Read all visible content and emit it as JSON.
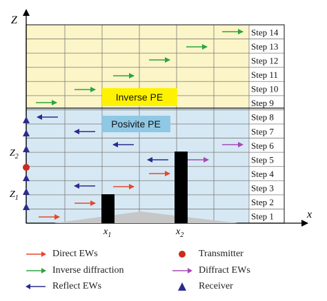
{
  "axes": {
    "z_label": "Z",
    "x_label": "x",
    "z_ticks": [
      "Z",
      "Z"
    ],
    "z_tick_subs": [
      "2",
      "1"
    ],
    "x_ticks": [
      "x",
      "x"
    ],
    "x_tick_subs": [
      "1",
      "2"
    ]
  },
  "regions": {
    "inverse_label": "Inverse PE",
    "positive_label": "Posivite PE"
  },
  "steps": [
    "Step 14",
    "Step 13",
    "Step 12",
    "Step 11",
    "Step 10",
    "Step 9",
    "Step 8",
    "Step 7",
    "Step 6",
    "Step 5",
    "Step 4",
    "Step 3",
    "Step 2",
    "Step 1"
  ],
  "colors": {
    "upper_region": "#fbf5c8",
    "lower_region": "#d6e8f3",
    "inverse_box": "#fff200",
    "positive_box": "#8fc8e4",
    "direct": "#e5472a",
    "inverse_diffraction": "#2aa541",
    "reflect": "#2b2b8c",
    "transmitter": "#cc2a1e",
    "diffract": "#a749b6",
    "receiver": "#2b2b8c",
    "ground": "#c7c7c7",
    "obstacle": "#000000"
  },
  "legend": {
    "direct": "Direct EWs",
    "inverse_diffraction": "Inverse diffraction",
    "reflect": "Reflect EWs",
    "transmitter": "Transmitter",
    "diffract": "Diffract EWs",
    "receiver": "Receiver"
  }
}
